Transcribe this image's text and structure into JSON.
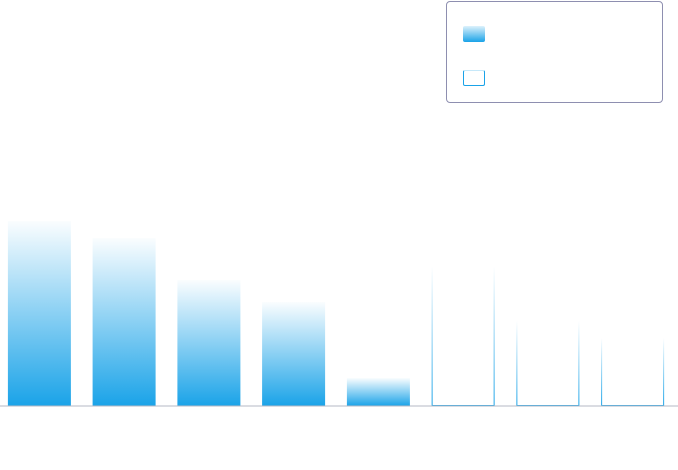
{
  "chart_data": {
    "type": "bar",
    "categories": [
      "",
      "",
      "",
      "",
      "",
      "",
      "",
      ""
    ],
    "series": [
      {
        "values": [
          185,
          168,
          126,
          104,
          28,
          0,
          0,
          0
        ],
        "style": "filled-gradient",
        "color": "#1aa3e8"
      },
      {
        "values": [
          0,
          0,
          0,
          0,
          0,
          140,
          85,
          68
        ],
        "style": "outline-gradient",
        "color": "#1aa3e8"
      }
    ],
    "title": "",
    "xlabel": "",
    "ylabel": "",
    "ylim": [
      0,
      185
    ],
    "grid": false,
    "legend_position": "top-right",
    "colors": {
      "bar_fill": "#1aa3e8",
      "bar_outline": "#1aa3e8",
      "baseline": "#b6b9c4",
      "legend_border": "#8e8fb0"
    }
  },
  "legend": {
    "entries": [
      {
        "label": ""
      },
      {
        "label": ""
      }
    ]
  }
}
